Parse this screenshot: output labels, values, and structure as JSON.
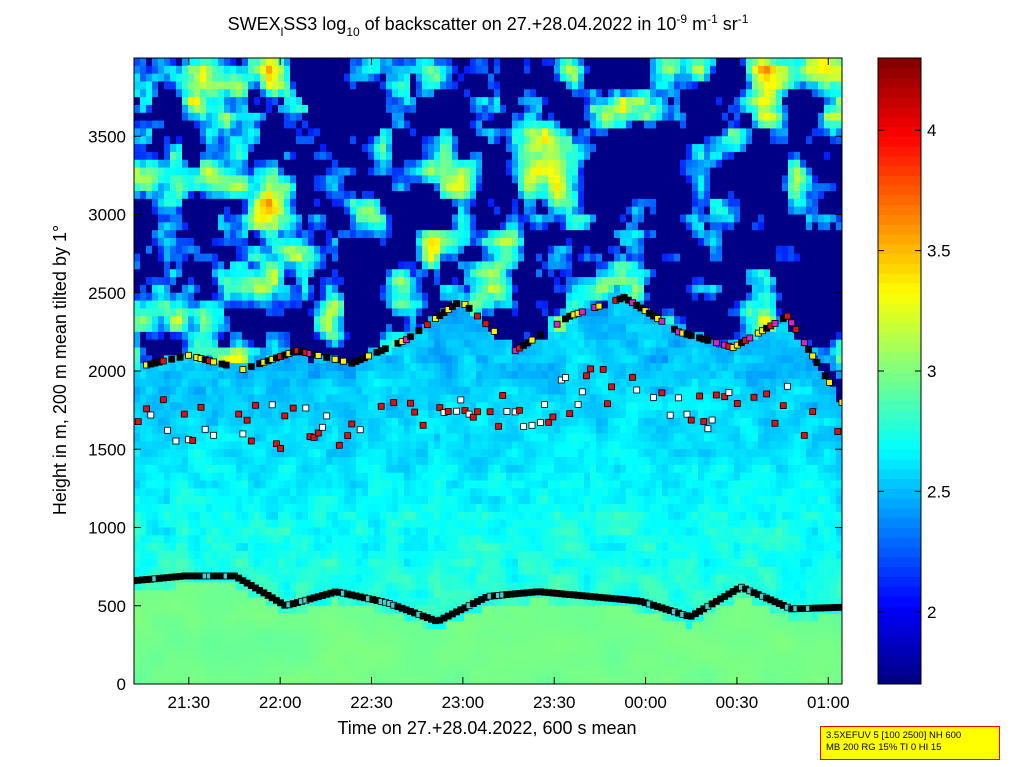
{
  "chart_data": {
    "type": "heatmap",
    "title_parts": {
      "prefix": "SWEX",
      "sub1": "l",
      "mid": "SS3 log",
      "sub2": "10",
      "text": " of backscatter on 27.+28.04.2022 in 10",
      "sup1": "-9",
      "unit1": " m",
      "sup2": "-1",
      "unit2": " sr",
      "sup3": "-1"
    },
    "xlabel": "Time on 27.+28.04.2022, 600 s mean",
    "ylabel": "Height in m, 200 m mean tilted by 1°",
    "x_ticks": [
      "21:30",
      "22:00",
      "22:30",
      "23:00",
      "23:30",
      "00:00",
      "00:30",
      "01:00"
    ],
    "x_tick_hours": [
      21.5,
      22.0,
      22.5,
      23.0,
      23.5,
      24.0,
      24.5,
      25.0
    ],
    "xlim_hours": [
      21.2,
      25.075
    ],
    "y_ticks": [
      0,
      500,
      1000,
      1500,
      2000,
      2500,
      3000,
      3500
    ],
    "ylim": [
      0,
      4000
    ],
    "colorbar": {
      "ticks": [
        "2",
        "2.5",
        "3",
        "3.5",
        "4"
      ],
      "tick_values": [
        2,
        2.5,
        3,
        3.5,
        4
      ],
      "range": [
        1.7,
        4.3
      ],
      "colormap": "jet"
    },
    "layer_heights_m": {
      "near_surface_layer": [
        660,
        690,
        690,
        500,
        590,
        520,
        400,
        560,
        590,
        560,
        530,
        430,
        620,
        480,
        490
      ],
      "upper_boundary": [
        2020,
        2100,
        2010,
        2130,
        2050,
        2200,
        2450,
        2130,
        2350,
        2470,
        2250,
        2150,
        2350,
        1800
      ]
    },
    "marker_colors": {
      "layer_marker": "#000000",
      "red_marker": "#dd1111",
      "yellow_marker": "#ffee00",
      "magenta_marker": "#dd22cc",
      "white_marker": "#ffffff",
      "cyan_marker": "#44cccc"
    }
  },
  "infobox": {
    "line1": "3.5XEFUV 5 [100 2500] NH 600",
    "line2": "MB 200 RG 15% TI 0 HI 15"
  }
}
